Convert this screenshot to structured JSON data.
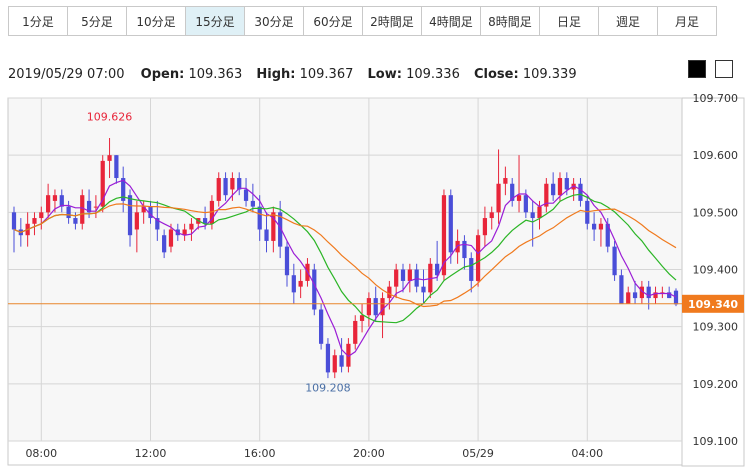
{
  "tabs": [
    "1分足",
    "5分足",
    "10分足",
    "15分足",
    "30分足",
    "60分足",
    "2時間足",
    "4時間足",
    "8時間足",
    "日足",
    "週足",
    "月足"
  ],
  "active_tab": "15分足",
  "info": {
    "datetime": "2019/05/29 07:00",
    "open_label": "Open:",
    "open": "109.363",
    "high_label": "High:",
    "high": "109.367",
    "low_label": "Low:",
    "low": "109.336",
    "close_label": "Close:",
    "close": "109.339"
  },
  "theme_buttons": {
    "dark": "black",
    "light": "white"
  },
  "colors": {
    "up": "#e8253a",
    "down": "#4a4ed8",
    "ma_short": "#9b1ed6",
    "ma_mid": "#2bb526",
    "ma_long": "#f07a1e",
    "price_line": "#e8862c",
    "price_tag": "#f07a1e",
    "grid": "#d6d6d6",
    "bg": "#f7f7f7"
  },
  "chart_data": {
    "type": "candlestick",
    "ylim": [
      109.1,
      109.7
    ],
    "y_ticks": [
      "109.700",
      "109.600",
      "109.500",
      "109.400",
      "109.300",
      "109.200",
      "109.100"
    ],
    "x_ticks": [
      "08:00",
      "12:00",
      "16:00",
      "20:00",
      "05/29",
      "04:00"
    ],
    "current_price": "109.340",
    "high_annotation": "109.626",
    "low_annotation": "109.208",
    "ohlc": [
      [
        109.5,
        109.51,
        109.43,
        109.47
      ],
      [
        109.47,
        109.49,
        109.44,
        109.46
      ],
      [
        109.46,
        109.5,
        109.44,
        109.48
      ],
      [
        109.48,
        109.5,
        109.46,
        109.49
      ],
      [
        109.49,
        109.51,
        109.47,
        109.5
      ],
      [
        109.5,
        109.55,
        109.49,
        109.53
      ],
      [
        109.52,
        109.54,
        109.5,
        109.53
      ],
      [
        109.53,
        109.54,
        109.5,
        109.51
      ],
      [
        109.51,
        109.52,
        109.48,
        109.49
      ],
      [
        109.49,
        109.5,
        109.47,
        109.48
      ],
      [
        109.48,
        109.54,
        109.47,
        109.53
      ],
      [
        109.52,
        109.54,
        109.49,
        109.5
      ],
      [
        109.51,
        109.53,
        109.49,
        109.51
      ],
      [
        109.51,
        109.6,
        109.5,
        109.59
      ],
      [
        109.59,
        109.63,
        109.56,
        109.6
      ],
      [
        109.6,
        109.6,
        109.55,
        109.56
      ],
      [
        109.56,
        109.58,
        109.5,
        109.52
      ],
      [
        109.53,
        109.54,
        109.44,
        109.46
      ],
      [
        109.47,
        109.52,
        109.43,
        109.5
      ],
      [
        109.5,
        109.52,
        109.48,
        109.51
      ],
      [
        109.51,
        109.52,
        109.48,
        109.49
      ],
      [
        109.49,
        109.52,
        109.45,
        109.47
      ],
      [
        109.46,
        109.47,
        109.42,
        109.43
      ],
      [
        109.44,
        109.48,
        109.43,
        109.47
      ],
      [
        109.47,
        109.48,
        109.45,
        109.46
      ],
      [
        109.46,
        109.48,
        109.45,
        109.47
      ],
      [
        109.47,
        109.49,
        109.45,
        109.48
      ],
      [
        109.48,
        109.49,
        109.47,
        109.49
      ],
      [
        109.49,
        109.51,
        109.47,
        109.48
      ],
      [
        109.48,
        109.53,
        109.47,
        109.52
      ],
      [
        109.52,
        109.57,
        109.51,
        109.56
      ],
      [
        109.56,
        109.57,
        109.52,
        109.53
      ],
      [
        109.54,
        109.57,
        109.52,
        109.56
      ],
      [
        109.56,
        109.57,
        109.53,
        109.54
      ],
      [
        109.54,
        109.56,
        109.51,
        109.52
      ],
      [
        109.52,
        109.55,
        109.5,
        109.51
      ],
      [
        109.51,
        109.53,
        109.45,
        109.47
      ],
      [
        109.47,
        109.5,
        109.43,
        109.45
      ],
      [
        109.45,
        109.51,
        109.43,
        109.5
      ],
      [
        109.5,
        109.52,
        109.42,
        109.44
      ],
      [
        109.44,
        109.45,
        109.37,
        109.39
      ],
      [
        109.39,
        109.41,
        109.34,
        109.36
      ],
      [
        109.37,
        109.4,
        109.35,
        109.38
      ],
      [
        109.38,
        109.42,
        109.37,
        109.41
      ],
      [
        109.4,
        109.41,
        109.32,
        109.33
      ],
      [
        109.33,
        109.34,
        109.26,
        109.27
      ],
      [
        109.27,
        109.28,
        109.21,
        109.22
      ],
      [
        109.22,
        109.26,
        109.21,
        109.25
      ],
      [
        109.25,
        109.28,
        109.22,
        109.23
      ],
      [
        109.23,
        109.28,
        109.22,
        109.27
      ],
      [
        109.27,
        109.32,
        109.26,
        109.31
      ],
      [
        109.31,
        109.34,
        109.29,
        109.32
      ],
      [
        109.32,
        109.36,
        109.3,
        109.35
      ],
      [
        109.35,
        109.37,
        109.31,
        109.32
      ],
      [
        109.32,
        109.36,
        109.28,
        109.35
      ],
      [
        109.35,
        109.38,
        109.33,
        109.37
      ],
      [
        109.37,
        109.41,
        109.35,
        109.4
      ],
      [
        109.4,
        109.41,
        109.36,
        109.38
      ],
      [
        109.38,
        109.41,
        109.36,
        109.4
      ],
      [
        109.4,
        109.41,
        109.36,
        109.37
      ],
      [
        109.37,
        109.4,
        109.34,
        109.36
      ],
      [
        109.36,
        109.42,
        109.35,
        109.41
      ],
      [
        109.41,
        109.45,
        109.38,
        109.39
      ],
      [
        109.39,
        109.54,
        109.38,
        109.53
      ],
      [
        109.53,
        109.54,
        109.41,
        109.43
      ],
      [
        109.43,
        109.47,
        109.41,
        109.45
      ],
      [
        109.45,
        109.46,
        109.4,
        109.42
      ],
      [
        109.42,
        109.43,
        109.36,
        109.38
      ],
      [
        109.38,
        109.47,
        109.37,
        109.46
      ],
      [
        109.46,
        109.51,
        109.44,
        109.49
      ],
      [
        109.49,
        109.51,
        109.47,
        109.5
      ],
      [
        109.5,
        109.61,
        109.48,
        109.55
      ],
      [
        109.55,
        109.58,
        109.53,
        109.56
      ],
      [
        109.55,
        109.56,
        109.51,
        109.52
      ],
      [
        109.52,
        109.6,
        109.5,
        109.53
      ],
      [
        109.53,
        109.54,
        109.49,
        109.5
      ],
      [
        109.5,
        109.52,
        109.44,
        109.49
      ],
      [
        109.49,
        109.52,
        109.47,
        109.51
      ],
      [
        109.51,
        109.56,
        109.5,
        109.55
      ],
      [
        109.55,
        109.57,
        109.52,
        109.53
      ],
      [
        109.53,
        109.57,
        109.52,
        109.56
      ],
      [
        109.56,
        109.57,
        109.53,
        109.54
      ],
      [
        109.54,
        109.56,
        109.52,
        109.55
      ],
      [
        109.55,
        109.56,
        109.51,
        109.52
      ],
      [
        109.52,
        109.53,
        109.47,
        109.48
      ],
      [
        109.48,
        109.5,
        109.45,
        109.47
      ],
      [
        109.47,
        109.49,
        109.44,
        109.48
      ],
      [
        109.48,
        109.49,
        109.43,
        109.44
      ],
      [
        109.44,
        109.45,
        109.38,
        109.39
      ],
      [
        109.39,
        109.4,
        109.34,
        109.34
      ],
      [
        109.34,
        109.37,
        109.34,
        109.36
      ],
      [
        109.36,
        109.38,
        109.34,
        109.35
      ],
      [
        109.35,
        109.38,
        109.34,
        109.37
      ],
      [
        109.37,
        109.38,
        109.33,
        109.35
      ],
      [
        109.35,
        109.37,
        109.34,
        109.36
      ],
      [
        109.36,
        109.37,
        109.35,
        109.36
      ],
      [
        109.36,
        109.37,
        109.35,
        109.35
      ],
      [
        109.363,
        109.367,
        109.336,
        109.339
      ]
    ]
  }
}
